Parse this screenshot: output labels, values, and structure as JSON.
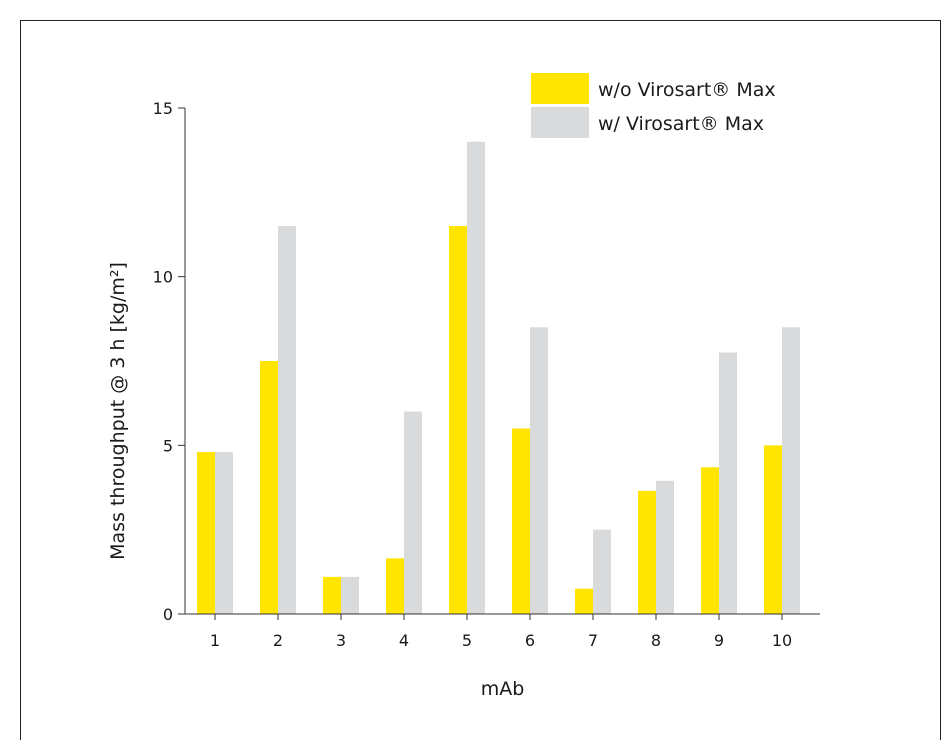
{
  "chart_data": {
    "type": "bar",
    "xlabel": "mAb",
    "ylabel": "Mass throughput @ 3 h [kg/m²]",
    "categories": [
      "1",
      "2",
      "3",
      "4",
      "5",
      "6",
      "7",
      "8",
      "9",
      "10"
    ],
    "ylim": [
      0,
      15
    ],
    "yticks": [
      "0",
      "5",
      "10",
      "15"
    ],
    "legend_position": "top-right",
    "grid": false,
    "series": [
      {
        "name": "w/o Virosart® Max",
        "color": "#ffe500",
        "values": [
          4.8,
          7.5,
          1.1,
          1.65,
          11.5,
          5.5,
          0.75,
          3.65,
          4.35,
          5.0
        ]
      },
      {
        "name": "w/ Virosart® Max",
        "color": "#d9dadb",
        "values": [
          4.8,
          11.5,
          1.1,
          6.0,
          14.0,
          8.5,
          2.5,
          3.95,
          7.75,
          8.5
        ]
      }
    ]
  }
}
